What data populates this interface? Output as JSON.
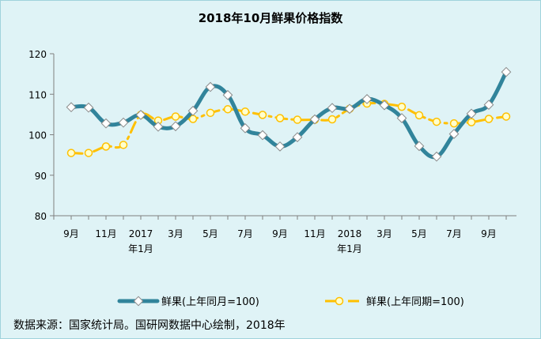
{
  "chart_data": {
    "type": "line",
    "title": "2018年10月鲜果价格指数",
    "xlabel": "",
    "ylabel": "",
    "ylim": [
      80,
      120
    ],
    "yticks": [
      80,
      90,
      100,
      110,
      120
    ],
    "x_tick_labels": [
      {
        "index": 0,
        "lines": [
          "9月"
        ]
      },
      {
        "index": 2,
        "lines": [
          "11月"
        ]
      },
      {
        "index": 4,
        "lines": [
          "2017",
          "年1月"
        ]
      },
      {
        "index": 6,
        "lines": [
          "3月"
        ]
      },
      {
        "index": 8,
        "lines": [
          "5月"
        ]
      },
      {
        "index": 10,
        "lines": [
          "7月"
        ]
      },
      {
        "index": 12,
        "lines": [
          "9月"
        ]
      },
      {
        "index": 14,
        "lines": [
          "11月"
        ]
      },
      {
        "index": 16,
        "lines": [
          "2018",
          "年1月"
        ]
      },
      {
        "index": 18,
        "lines": [
          "3月"
        ]
      },
      {
        "index": 20,
        "lines": [
          "5月"
        ]
      },
      {
        "index": 22,
        "lines": [
          "7月"
        ]
      },
      {
        "index": 24,
        "lines": [
          "9月"
        ]
      }
    ],
    "categories": [
      "2016-09",
      "2016-10",
      "2016-11",
      "2016-12",
      "2017-01",
      "2017-02",
      "2017-03",
      "2017-04",
      "2017-05",
      "2017-06",
      "2017-07",
      "2017-08",
      "2017-09",
      "2017-10",
      "2017-11",
      "2017-12",
      "2018-01",
      "2018-02",
      "2018-03",
      "2018-04",
      "2018-05",
      "2018-06",
      "2018-07",
      "2018-08",
      "2018-09",
      "2018-10"
    ],
    "series": [
      {
        "name": "鲜果(上年同月=100)",
        "style": "solid",
        "color": "#31849b",
        "marker_color": "#ffffff",
        "values": [
          106.8,
          106.7,
          102.8,
          103.0,
          104.9,
          102.0,
          102.1,
          105.9,
          111.8,
          109.8,
          101.6,
          99.9,
          97.1,
          99.4,
          103.8,
          106.6,
          106.4,
          108.8,
          107.3,
          104.1,
          97.2,
          94.6,
          100.2,
          105.2,
          107.4,
          115.5
        ]
      },
      {
        "name": "鲜果(上年同期=100)",
        "style": "dash-dot",
        "color": "#ffc000",
        "marker_color": "#ffffcc",
        "values": [
          95.5,
          95.5,
          97.1,
          97.5,
          104.9,
          103.5,
          104.5,
          103.9,
          105.4,
          106.3,
          105.7,
          104.9,
          104.1,
          103.7,
          103.7,
          103.8,
          106.4,
          107.7,
          107.6,
          106.9,
          104.8,
          103.2,
          102.8,
          103.1,
          103.9,
          104.5
        ]
      }
    ]
  },
  "source_text": "数据来源：国家统计局。国研网数据中心绘制，2018年"
}
